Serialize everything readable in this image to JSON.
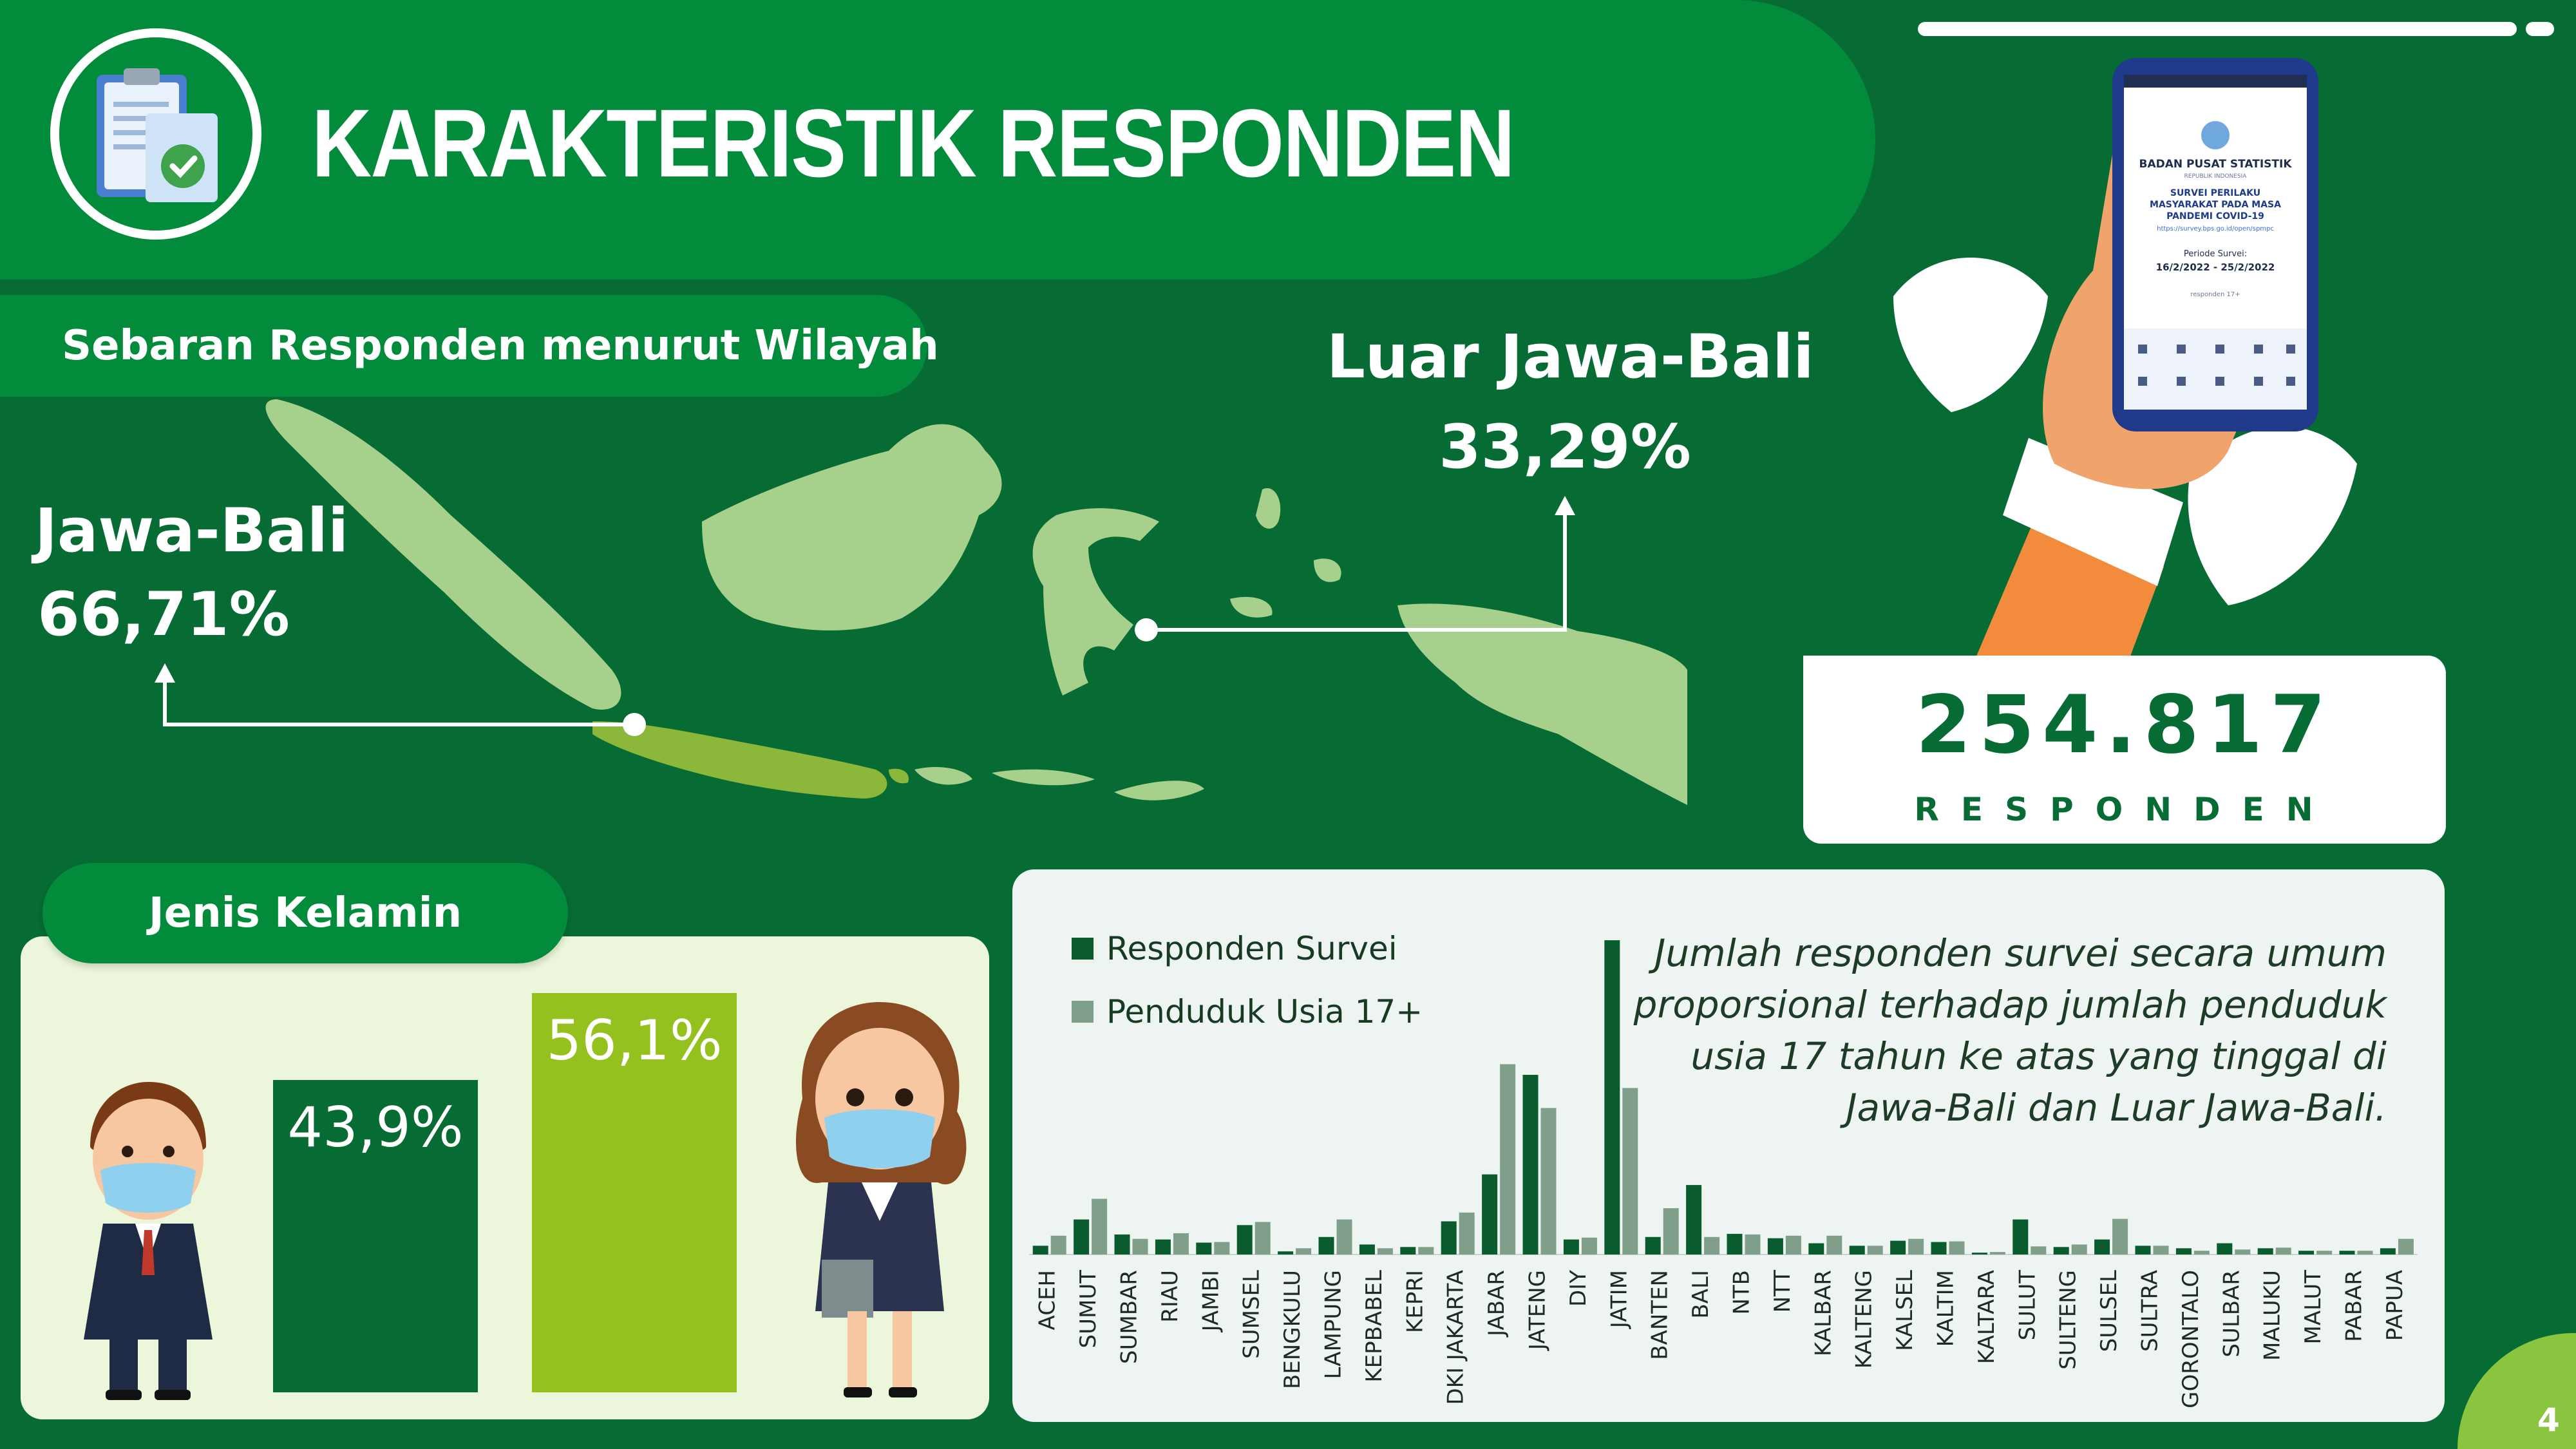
{
  "header": {
    "title": "KARAKTERISTIK RESPONDEN",
    "icon": "clipboard-check-icon"
  },
  "map_section": {
    "pill_label": "Sebaran Responden menurut Wilayah",
    "jawa_bali": {
      "label": "Jawa-Bali",
      "value": "66,71%"
    },
    "luar_jawa_bali": {
      "label": "Luar Jawa-Bali",
      "value": "33,29%"
    },
    "colors": {
      "islands": "#a8d08d",
      "java_bali": "#8bb73b"
    }
  },
  "respondents": {
    "count": "254.817",
    "label": "RESPONDEN"
  },
  "phone": {
    "org": "BADAN PUSAT STATISTIK",
    "org_sub": "REPUBLIK INDONESIA",
    "survey_title_1": "SURVEI PERILAKU",
    "survey_title_2": "MASYARAKAT PADA MASA",
    "survey_title_3": "PANDEMI COVID-19",
    "link": "https://survey.bps.go.id/open/spmpc",
    "period_label": "Periode Survei:",
    "period": "16/2/2022 - 25/2/2022",
    "footer": "responden 17+"
  },
  "gender": {
    "pill_label": "Jenis Kelamin",
    "male": {
      "value": 43.9,
      "label": "43,9%",
      "color": "#076b34"
    },
    "female": {
      "value": 56.1,
      "label": "56,1%",
      "color": "#95c11f"
    }
  },
  "note": "Jumlah responden survei secara umum proporsional terhadap jumlah penduduk usia 17 tahun ke atas yang tinggal di Jawa-Bali dan Luar Jawa-Bali.",
  "page_number": "4",
  "colors": {
    "background": "#076b34",
    "accent": "#018b3a",
    "series_dark": "#0a5c2e",
    "series_gray": "#7f9f8a"
  },
  "chart_data": {
    "type": "bar",
    "categories": [
      "ACEH",
      "SUMUT",
      "SUMBAR",
      "RIAU",
      "JAMBI",
      "SUMSEL",
      "BENGKULU",
      "LAMPUNG",
      "KEPBABEL",
      "KEPRI",
      "DKI JAKARTA",
      "JABAR",
      "JATENG",
      "DIY",
      "JATIM",
      "BANTEN",
      "BALI",
      "NTB",
      "NTT",
      "KALBAR",
      "KALTENG",
      "KALSEL",
      "KALTIM",
      "KALTARA",
      "SULUT",
      "SULTENG",
      "SULSEL",
      "SULTRA",
      "GORONTALO",
      "SULBAR",
      "MALUKU",
      "MALUT",
      "PABAR",
      "PAPUA"
    ],
    "series": [
      {
        "name": "Responden Survei",
        "values": [
          1.4,
          5.6,
          3.2,
          2.4,
          1.9,
          4.7,
          0.5,
          2.8,
          1.6,
          1.2,
          5.3,
          12.8,
          28.7,
          2.4,
          50.2,
          2.8,
          11.1,
          3.3,
          2.6,
          1.8,
          1.4,
          2.2,
          2.0,
          0.3,
          5.6,
          1.2,
          2.4,
          1.4,
          1.0,
          1.8,
          1.0,
          0.6,
          0.6,
          1.0
        ]
      },
      {
        "name": "Penduduk Usia 17+",
        "values": [
          3.0,
          8.9,
          2.5,
          3.4,
          2.0,
          5.2,
          1.0,
          5.6,
          1.0,
          1.2,
          6.7,
          30.4,
          23.4,
          2.7,
          26.6,
          7.4,
          2.8,
          3.2,
          3.0,
          3.0,
          1.4,
          2.5,
          2.1,
          0.4,
          1.3,
          1.6,
          5.7,
          1.4,
          0.6,
          0.8,
          1.1,
          0.6,
          0.6,
          2.5
        ]
      }
    ],
    "title": "",
    "xlabel": "",
    "ylabel": "",
    "ylim": [
      0,
      50.2
    ],
    "legend_position": "top-left",
    "grid": false
  }
}
